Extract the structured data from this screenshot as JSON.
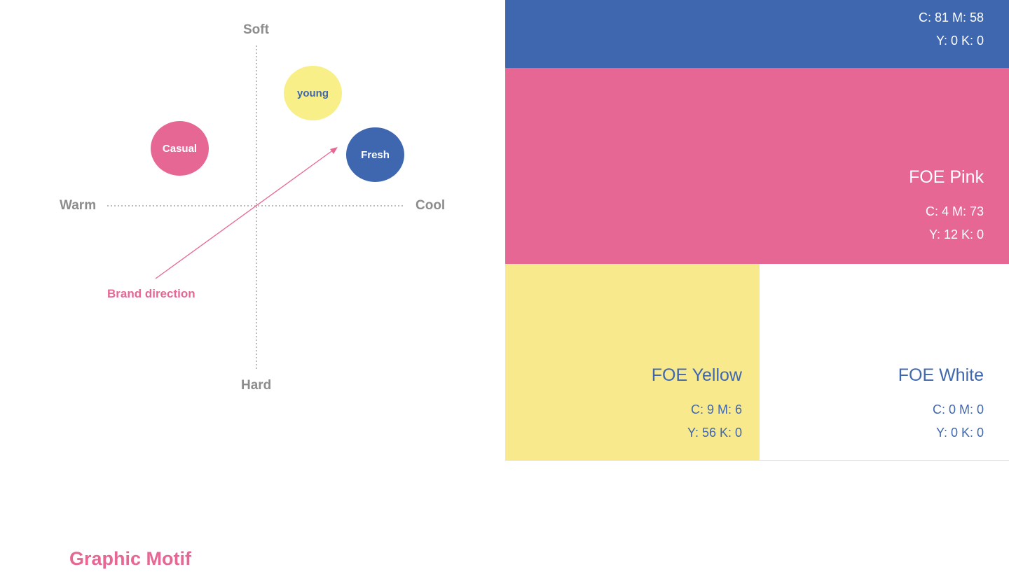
{
  "colors": {
    "blue": "#3f67b0",
    "pink": "#e76794",
    "yellow": "#f7e98c",
    "white": "#ffffff",
    "axis_text": "#8c8c8c",
    "axis_line": "#7a7a7a"
  },
  "positioning_map": {
    "axes": {
      "top": "Soft",
      "bottom": "Hard",
      "left": "Warm",
      "right": "Cool"
    },
    "bubbles": [
      {
        "label": "young",
        "fill": "#f8ef88",
        "text_color": "#3f67b0"
      },
      {
        "label": "Casual",
        "fill": "#e76794",
        "text_color": "#ffffff"
      },
      {
        "label": "Fresh",
        "fill": "#3f67b0",
        "text_color": "#ffffff"
      }
    ],
    "arrow_label": "Brand direction"
  },
  "palette": {
    "blue": {
      "line1": "C: 81  M: 58",
      "line2": "Y: 0  K: 0"
    },
    "pink": {
      "name": "FOE Pink",
      "line1": "C: 4  M: 73",
      "line2": "Y: 12  K: 0"
    },
    "yellow": {
      "name": "FOE Yellow",
      "line1": "C: 9  M: 6",
      "line2": "Y: 56  K: 0"
    },
    "white": {
      "name": "FOE White",
      "line1": "C: 0  M: 0",
      "line2": "Y: 0  K: 0"
    }
  },
  "section_title": "Graphic Motif"
}
